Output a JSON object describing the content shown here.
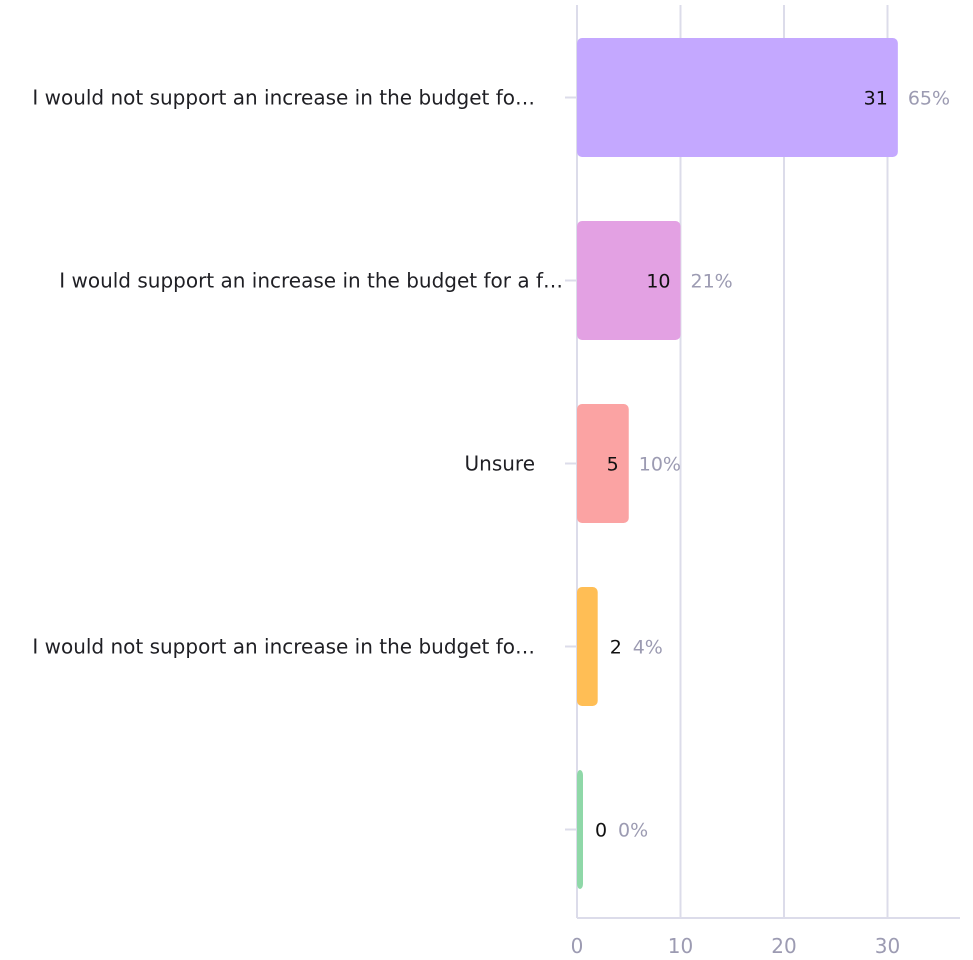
{
  "chart_data": {
    "type": "bar",
    "orientation": "horizontal",
    "categories": [
      "I would not support an increase in the budget fo…",
      "I would support an increase in the budget for a f…",
      "Unsure",
      "I would not support an increase in the budget fo…",
      ""
    ],
    "values": [
      31,
      10,
      5,
      2,
      0
    ],
    "percent_labels": [
      "65%",
      "21%",
      "10%",
      "4%",
      "0%"
    ],
    "colors": [
      "#c4a8ff",
      "#e3a1e3",
      "#fba3a3",
      "#ffbe55",
      "#8fd8a8"
    ],
    "x_ticks": [
      0,
      10,
      20,
      30
    ],
    "xlim": [
      0,
      37
    ],
    "grid": true,
    "legend": "none"
  }
}
